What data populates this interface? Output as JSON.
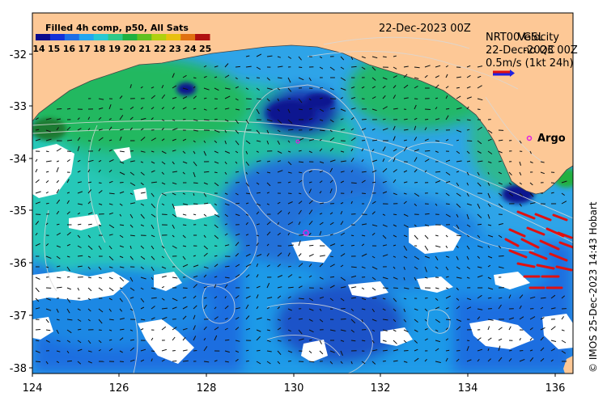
{
  "map": {
    "title": "Filled 4h comp, p50, All Sats",
    "date_label": "22-Dec-2023 00Z",
    "colorbar": {
      "tick_labels": [
        "14",
        "15",
        "16",
        "17",
        "18",
        "19",
        "20",
        "21",
        "22",
        "23",
        "24",
        "25"
      ],
      "colors": [
        "#0a0a8c",
        "#1430d8",
        "#1e6ee6",
        "#22a6f0",
        "#28c8d2",
        "#2ec888",
        "#20b040",
        "#60c020",
        "#b0d010",
        "#e8c010",
        "#e07010",
        "#b01010"
      ]
    },
    "legend": {
      "overlap_line_1a": "NRT00 GSL",
      "overlap_line_1b": "Velocity",
      "overlap_line_2a": "22-Dec-2023 00Z",
      "overlap_line_2b": "no QC",
      "scale_label": "0.5m/s (1kt 24h)"
    },
    "argo_label": "Argo",
    "credit": "© IMOS 25-Dec-2023 14:43 Hobart",
    "y_axis_labels": [
      "-32",
      "-33",
      "-34",
      "-35",
      "-36",
      "-37",
      "-38"
    ],
    "x_axis_labels": [
      "124",
      "126",
      "128",
      "130",
      "132",
      "134",
      "136"
    ],
    "colors": {
      "land": "#fdc896",
      "argo_marker": "#e020e0",
      "arrow_red": "#e01010",
      "arrow_blue": "#2020e0"
    }
  }
}
